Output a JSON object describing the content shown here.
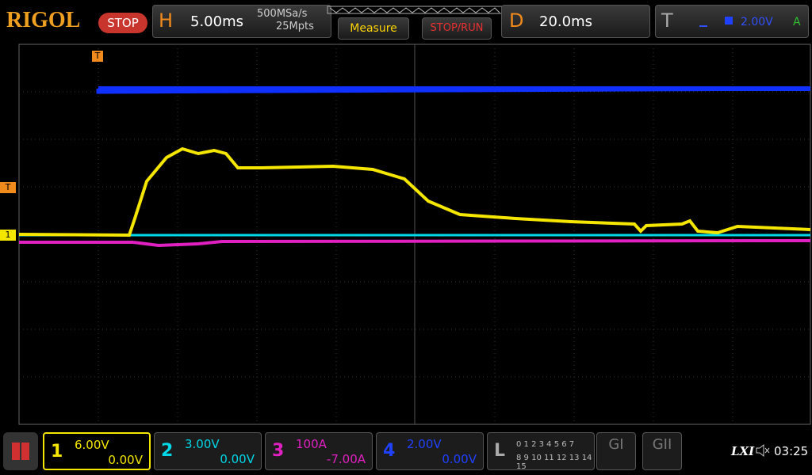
{
  "header": {
    "brand": "RIGOL",
    "run_state": "STOP",
    "horizontal": {
      "label": "H",
      "timebase": "5.00ms",
      "sample_rate": "500MSa/s",
      "memory_depth": "25Mpts"
    },
    "measure": "Measure",
    "stop_run": "STOP/RUN",
    "delay": {
      "label": "D",
      "value": "20.0ms"
    },
    "trigger": {
      "label": "T",
      "level": "2.00V",
      "mode": "A"
    }
  },
  "markers": {
    "trigger_position": "T",
    "trigger_level": "T",
    "channel1": "1"
  },
  "channels": [
    {
      "number": "1",
      "scale": "6.00V",
      "offset": "0.00V"
    },
    {
      "number": "2",
      "scale": "3.00V",
      "offset": "0.00V"
    },
    {
      "number": "3",
      "scale": "100A",
      "offset": "-7.00A"
    },
    {
      "number": "4",
      "scale": "2.00V",
      "offset": "0.00V"
    }
  ],
  "logic": {
    "label": "L",
    "row1": "0 1 2 3 4 5 6 7",
    "row2": "8 9 10 11 12 13 14 15"
  },
  "generators": [
    "GI",
    "GII"
  ],
  "status": {
    "lxi": "LXI",
    "time": "03:25"
  }
}
